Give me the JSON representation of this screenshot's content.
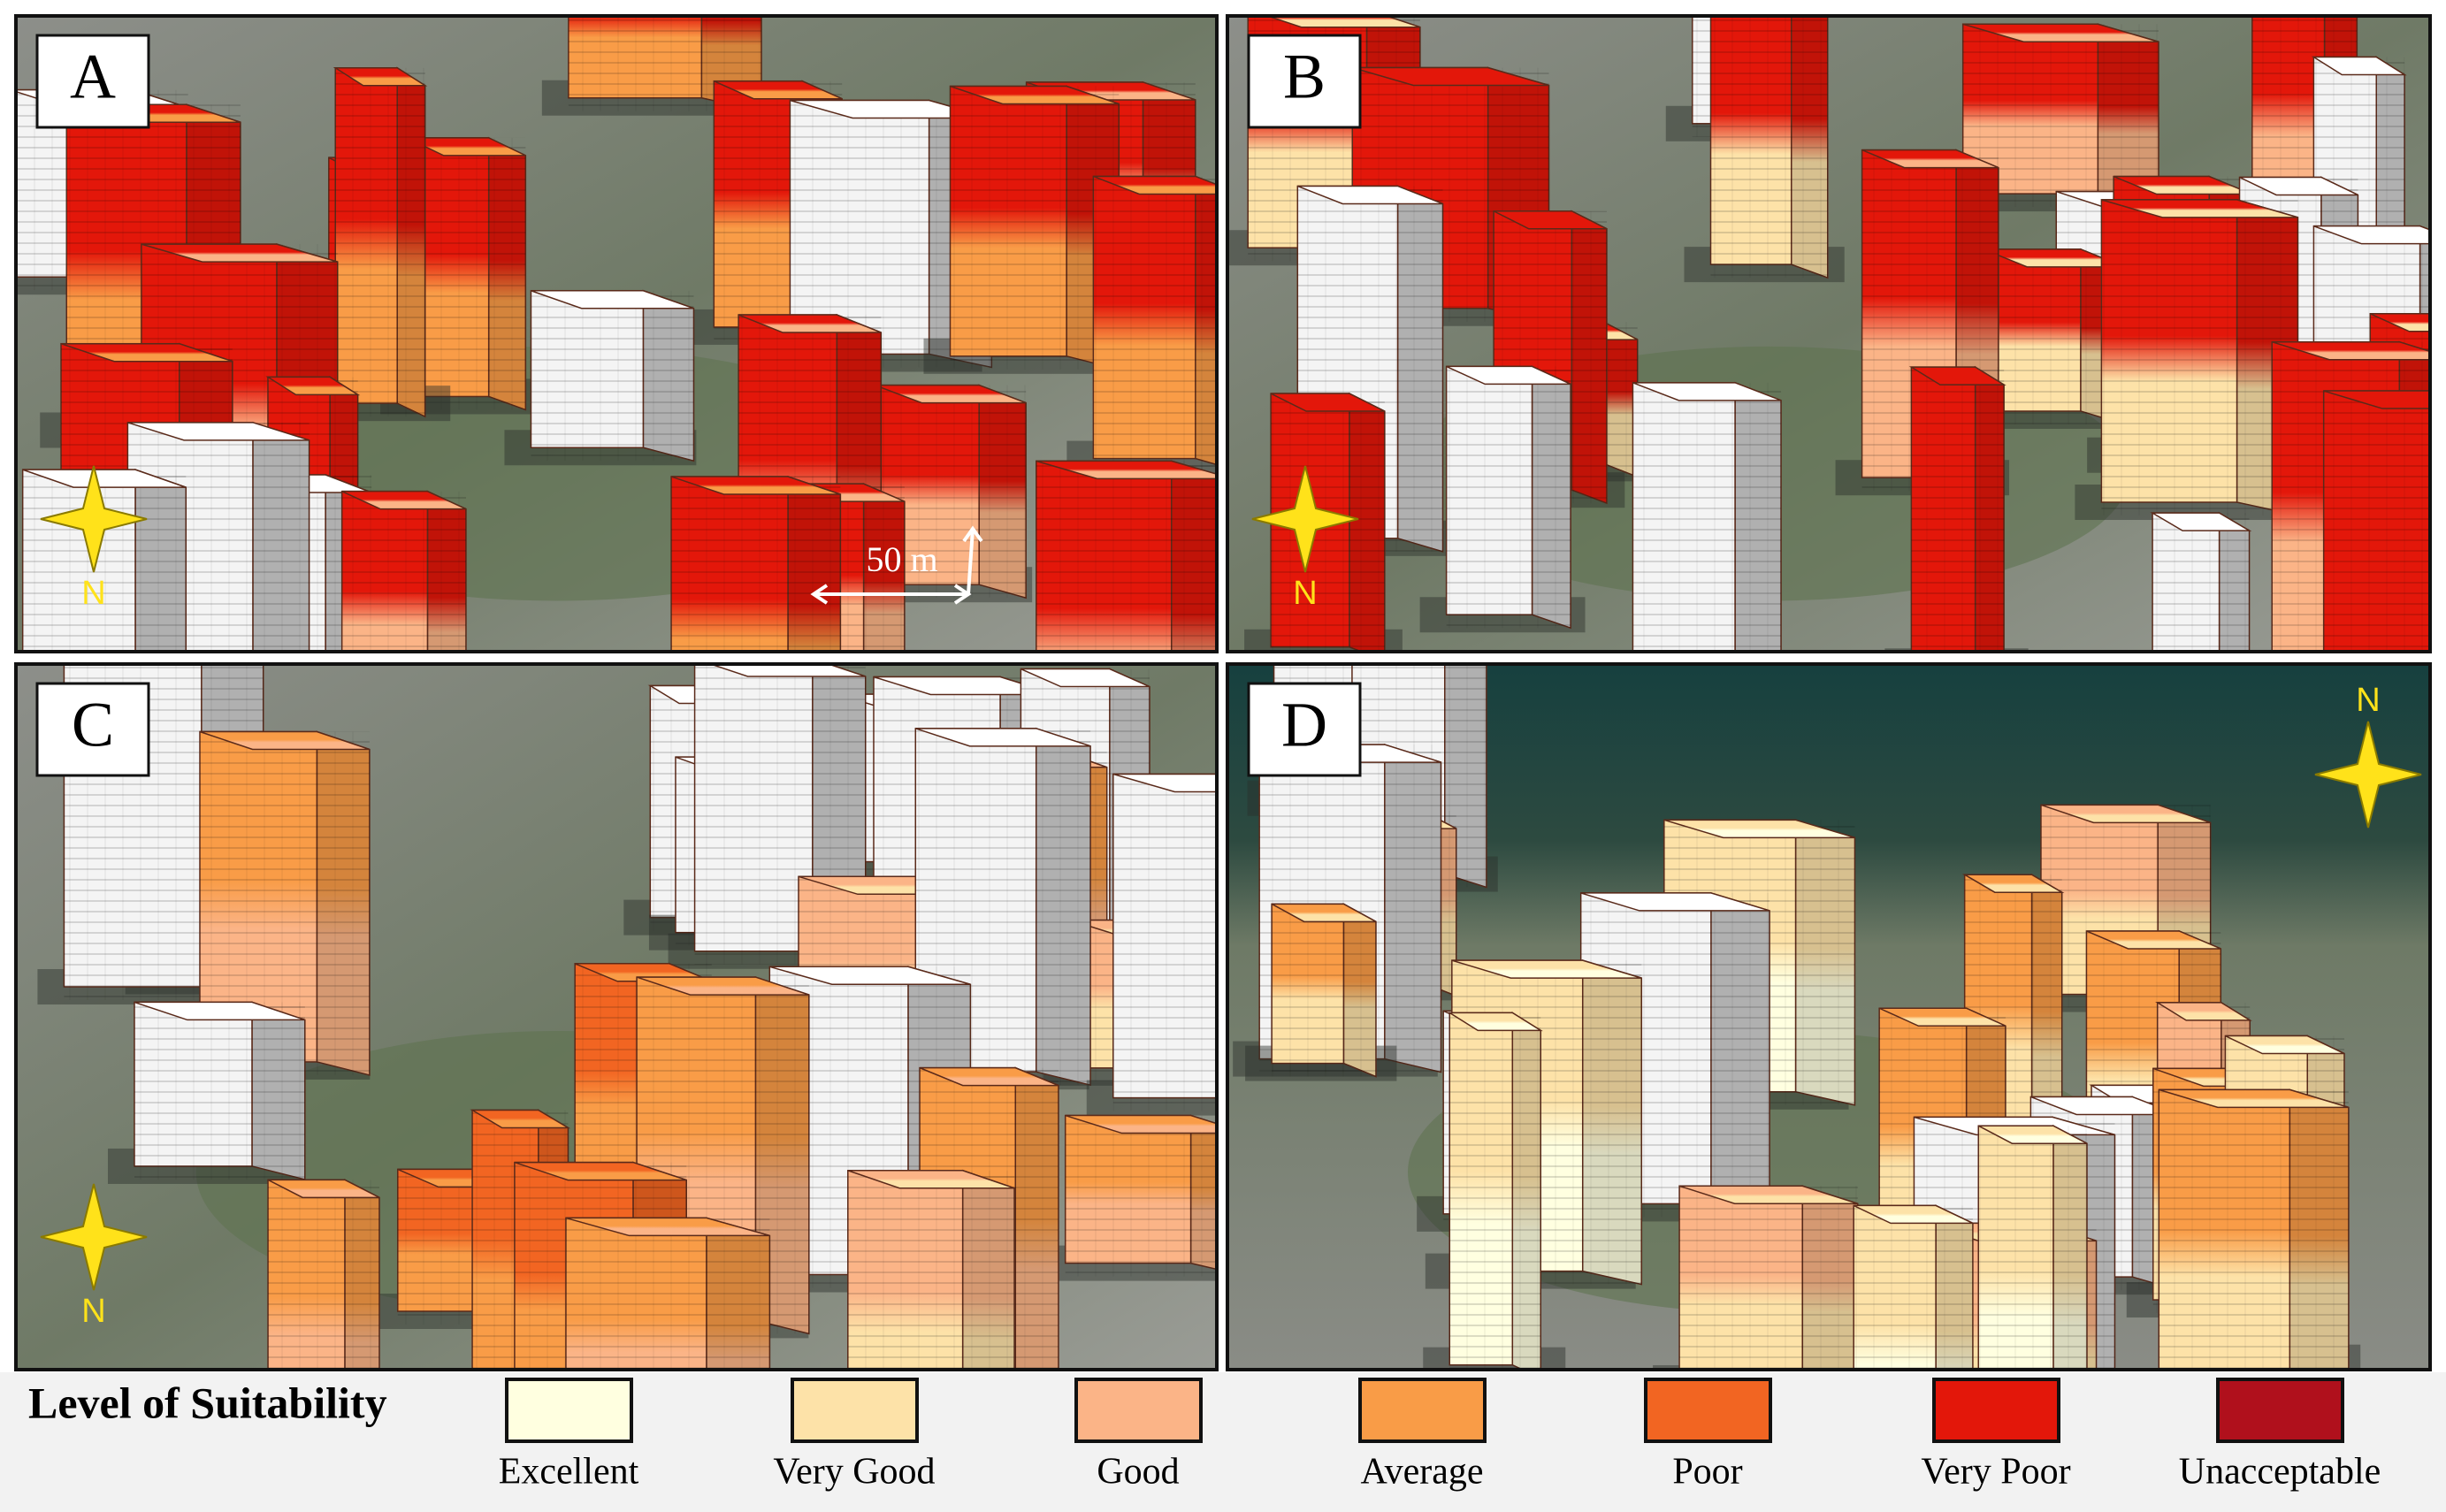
{
  "panels": [
    {
      "label": "A"
    },
    {
      "label": "B"
    },
    {
      "label": "C"
    },
    {
      "label": "D"
    }
  ],
  "scale_bar": "50 m",
  "compass": "N",
  "legend": {
    "title": "Level of Suitability",
    "items": [
      {
        "label": "Excellent",
        "color": "#ffffe0"
      },
      {
        "label": "Very Good",
        "color": "#fde2a8"
      },
      {
        "label": "Good",
        "color": "#fbb487"
      },
      {
        "label": "Average",
        "color": "#f99c47"
      },
      {
        "label": "Poor",
        "color": "#f26522"
      },
      {
        "label": "Very Poor",
        "color": "#e3170a"
      },
      {
        "label": "Unacceptable",
        "color": "#b0101c"
      }
    ]
  }
}
